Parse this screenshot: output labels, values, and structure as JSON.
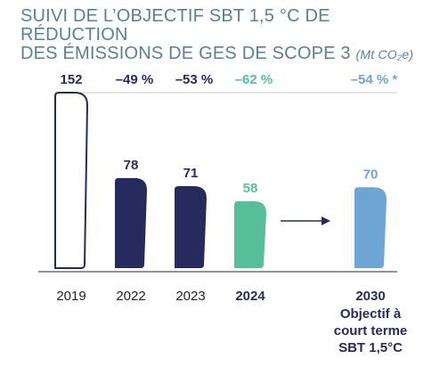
{
  "title": {
    "line1": "SUIVI DE L’OBJECTIF SBT 1,5 °C DE RÉDUCTION",
    "line2": "DES ÉMISSIONS DE GES DE SCOPE 3",
    "unit": "(Mt CO₂e)"
  },
  "colors": {
    "title": "#5a7f97",
    "navy": "#272a5e",
    "green": "#56bf99",
    "blue": "#6fa4d6",
    "outline_fill": "#ffffff",
    "axis": "#555555"
  },
  "chart_data": {
    "type": "bar",
    "categories": [
      "2019",
      "2022",
      "2023",
      "2024",
      "2030"
    ],
    "values": [
      152,
      78,
      71,
      58,
      70
    ],
    "data_labels": [
      "152",
      "78",
      "71",
      "58",
      "70"
    ],
    "changes": [
      "",
      "–49 %",
      "–53 %",
      "–62 %",
      "–54 % *"
    ],
    "bold_categories": [
      false,
      false,
      false,
      true,
      true
    ],
    "target_label": [
      "Objectif à",
      "court terme",
      "SBT 1,5°C"
    ],
    "bar_styles": [
      "outline",
      "navy",
      "navy",
      "green",
      "blue"
    ],
    "arrow_from_index": 3,
    "arrow_to_index": 4,
    "ylim": [
      0,
      152
    ]
  }
}
